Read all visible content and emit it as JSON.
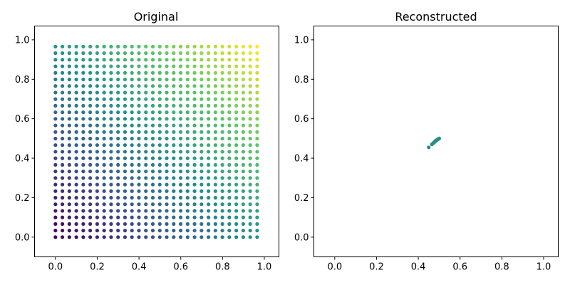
{
  "figure": {
    "background": "#ffffff",
    "colormap": "viridis"
  },
  "chart_data": [
    {
      "type": "scatter",
      "title": "Original",
      "xlabel": "",
      "ylabel": "",
      "xlim": [
        -0.1,
        1.07
      ],
      "ylim": [
        -0.1,
        1.07
      ],
      "xticks": [
        "0.0",
        "0.2",
        "0.4",
        "0.6",
        "0.8",
        "1.0"
      ],
      "yticks": [
        "0.0",
        "0.2",
        "0.4",
        "0.6",
        "0.8",
        "1.0"
      ],
      "grid": false,
      "points": {
        "kind": "regular-grid",
        "x_start": 0.0,
        "x_step": 0.0333,
        "x_count": 30,
        "y_start": 0.0,
        "y_step": 0.0333,
        "y_count": 30,
        "color_value": "x + y"
      }
    },
    {
      "type": "scatter",
      "title": "Reconstructed",
      "xlabel": "",
      "ylabel": "",
      "xlim": [
        -0.1,
        1.07
      ],
      "ylim": [
        -0.1,
        1.07
      ],
      "xticks": [
        "0.0",
        "0.2",
        "0.4",
        "0.6",
        "0.8",
        "1.0"
      ],
      "yticks": [
        "0.0",
        "0.2",
        "0.4",
        "0.6",
        "0.8",
        "1.0"
      ],
      "grid": false,
      "color": "#2a8b8a",
      "points": [
        [
          0.45,
          0.455
        ],
        [
          0.465,
          0.47
        ],
        [
          0.47,
          0.475
        ],
        [
          0.475,
          0.48
        ],
        [
          0.478,
          0.482
        ],
        [
          0.48,
          0.485
        ],
        [
          0.483,
          0.487
        ],
        [
          0.485,
          0.49
        ],
        [
          0.487,
          0.49
        ],
        [
          0.49,
          0.493
        ],
        [
          0.492,
          0.495
        ],
        [
          0.495,
          0.497
        ],
        [
          0.497,
          0.498
        ],
        [
          0.5,
          0.5
        ]
      ]
    }
  ]
}
